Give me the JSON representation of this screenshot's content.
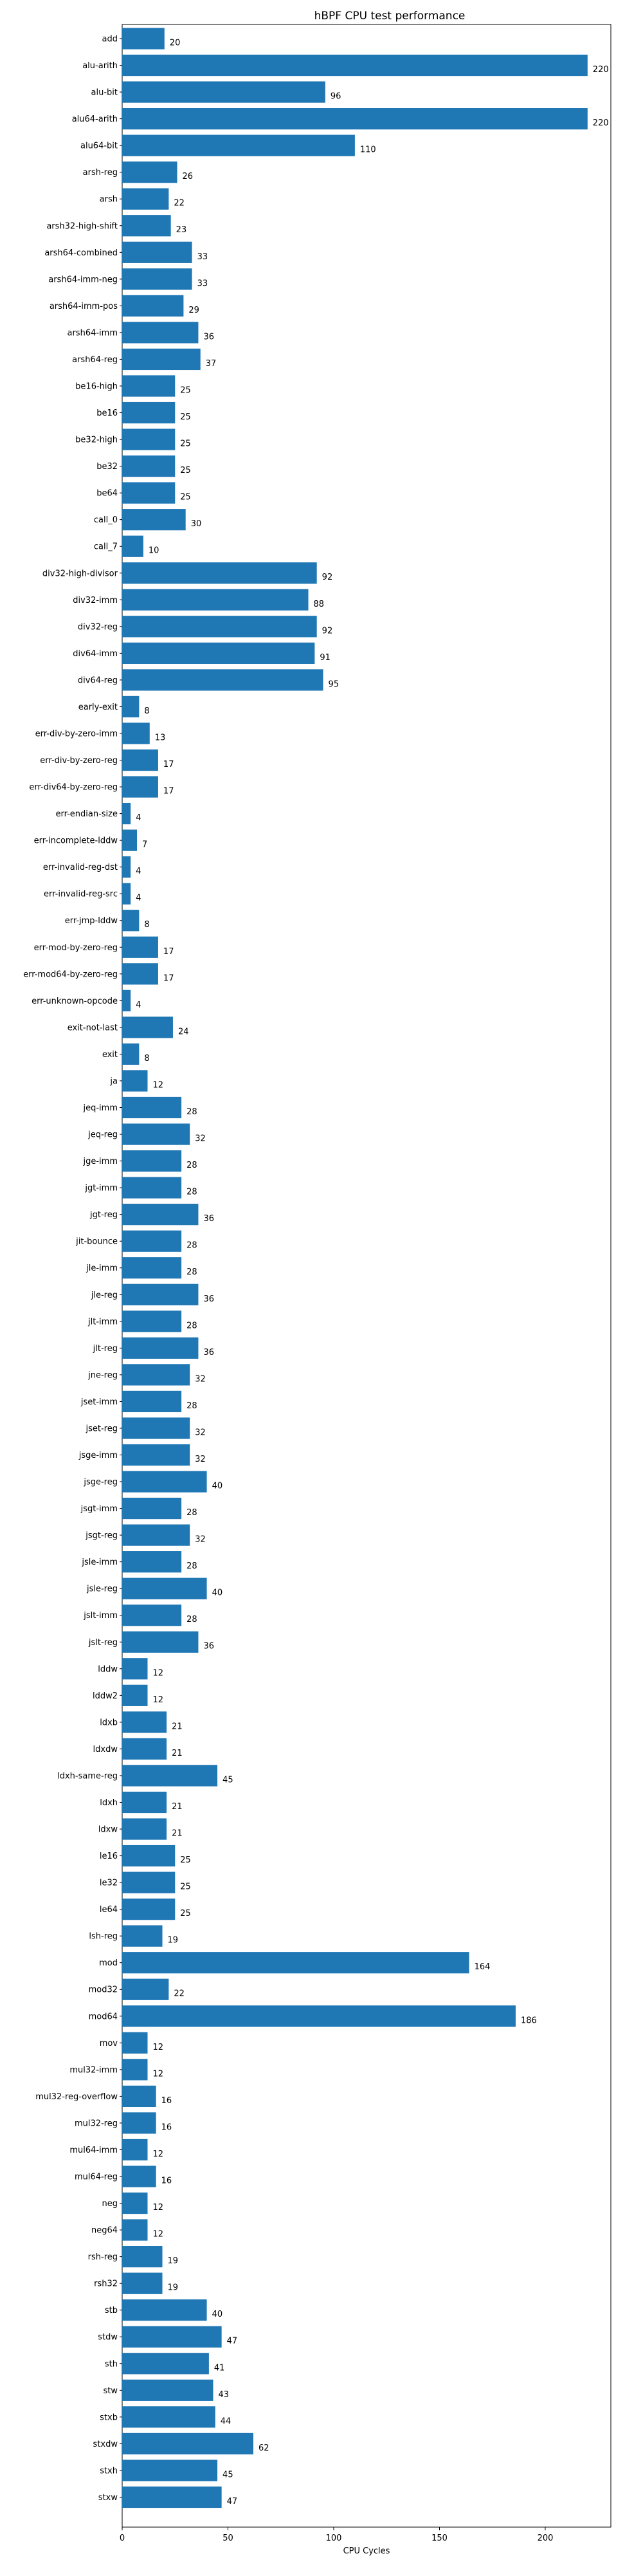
{
  "chart_data": {
    "type": "bar",
    "orientation": "horizontal",
    "title": "hBPF CPU test performance",
    "xlabel": "CPU Cycles",
    "ylabel": "",
    "xlim": [
      0,
      231
    ],
    "xticks": [
      0,
      50,
      100,
      150,
      200
    ],
    "grid": false,
    "bar_color": "#1f77b4",
    "categories": [
      "add",
      "alu-arith",
      "alu-bit",
      "alu64-arith",
      "alu64-bit",
      "arsh-reg",
      "arsh",
      "arsh32-high-shift",
      "arsh64-combined",
      "arsh64-imm-neg",
      "arsh64-imm-pos",
      "arsh64-imm",
      "arsh64-reg",
      "be16-high",
      "be16",
      "be32-high",
      "be32",
      "be64",
      "call_0",
      "call_7",
      "div32-high-divisor",
      "div32-imm",
      "div32-reg",
      "div64-imm",
      "div64-reg",
      "early-exit",
      "err-div-by-zero-imm",
      "err-div-by-zero-reg",
      "err-div64-by-zero-reg",
      "err-endian-size",
      "err-incomplete-lddw",
      "err-invalid-reg-dst",
      "err-invalid-reg-src",
      "err-jmp-lddw",
      "err-mod-by-zero-reg",
      "err-mod64-by-zero-reg",
      "err-unknown-opcode",
      "exit-not-last",
      "exit",
      "ja",
      "jeq-imm",
      "jeq-reg",
      "jge-imm",
      "jgt-imm",
      "jgt-reg",
      "jit-bounce",
      "jle-imm",
      "jle-reg",
      "jlt-imm",
      "jlt-reg",
      "jne-reg",
      "jset-imm",
      "jset-reg",
      "jsge-imm",
      "jsge-reg",
      "jsgt-imm",
      "jsgt-reg",
      "jsle-imm",
      "jsle-reg",
      "jslt-imm",
      "jslt-reg",
      "lddw",
      "lddw2",
      "ldxb",
      "ldxdw",
      "ldxh-same-reg",
      "ldxh",
      "ldxw",
      "le16",
      "le32",
      "le64",
      "lsh-reg",
      "mod",
      "mod32",
      "mod64",
      "mov",
      "mul32-imm",
      "mul32-reg-overflow",
      "mul32-reg",
      "mul64-imm",
      "mul64-reg",
      "neg",
      "neg64",
      "rsh-reg",
      "rsh32",
      "stb",
      "stdw",
      "sth",
      "stw",
      "stxb",
      "stxdw",
      "stxh",
      "stxw"
    ],
    "values": [
      20,
      220,
      96,
      220,
      110,
      26,
      22,
      23,
      33,
      33,
      29,
      36,
      37,
      25,
      25,
      25,
      25,
      25,
      30,
      10,
      92,
      88,
      92,
      91,
      95,
      8,
      13,
      17,
      17,
      4,
      7,
      4,
      4,
      8,
      17,
      17,
      4,
      24,
      8,
      12,
      28,
      32,
      28,
      28,
      36,
      28,
      28,
      36,
      28,
      36,
      32,
      28,
      32,
      32,
      40,
      28,
      32,
      28,
      40,
      28,
      36,
      12,
      12,
      21,
      21,
      45,
      21,
      21,
      25,
      25,
      25,
      19,
      164,
      22,
      186,
      12,
      12,
      16,
      16,
      12,
      16,
      12,
      12,
      19,
      19,
      40,
      47,
      41,
      43,
      44,
      62,
      45,
      47
    ]
  }
}
